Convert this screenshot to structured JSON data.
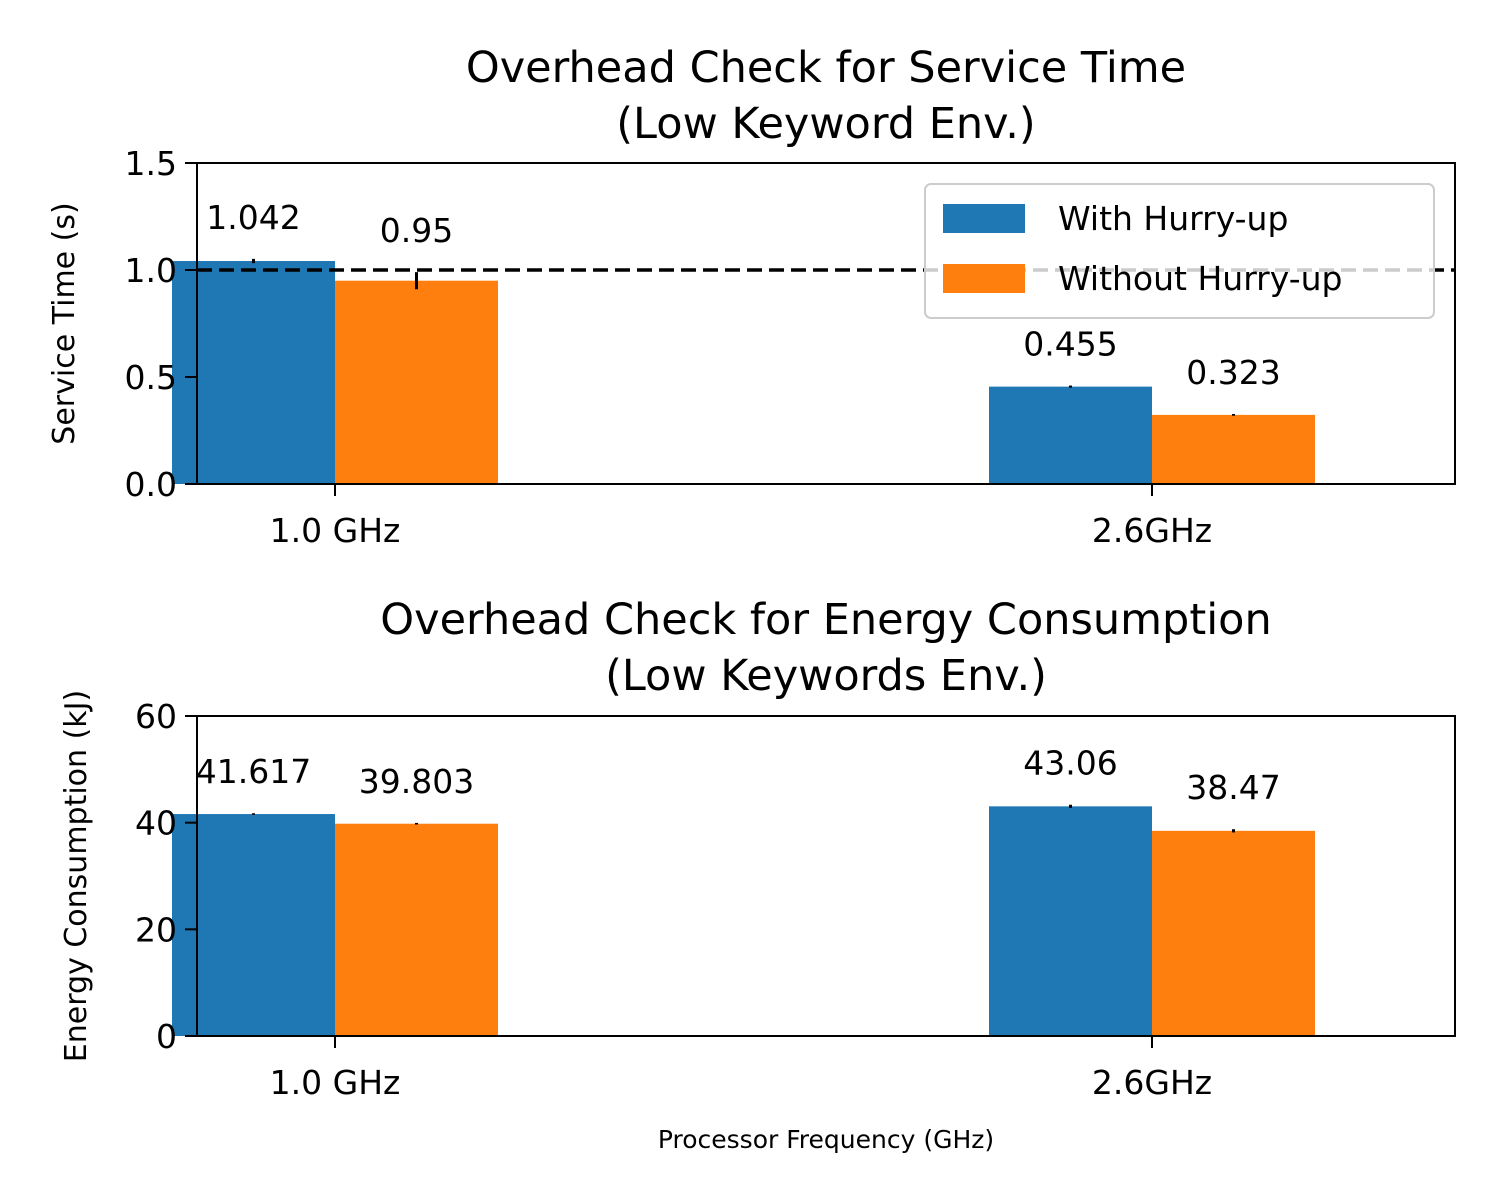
{
  "colors": {
    "with": "#1f77b4",
    "without": "#ff7f0e",
    "axis": "#000000",
    "reference_line": "#000000"
  },
  "xlabel": "Processor Frequency (GHz)",
  "legend": {
    "placement": "upper-right of top chart",
    "items": [
      "With Hurry-up",
      "Without Hurry-up"
    ]
  },
  "chart_data": [
    {
      "type": "bar",
      "title": "Overhead Check for Service Time\n(Low Keyword Env.)",
      "title_lines": [
        "Overhead Check for Service Time",
        "(Low Keyword Env.)"
      ],
      "ylabel": "Service Time (s)",
      "xlabel": "",
      "categories": [
        "1.0 GHz",
        "2.6GHz"
      ],
      "ylim": [
        0,
        1.5
      ],
      "yticks": [
        0.0,
        0.5,
        1.0,
        1.5
      ],
      "ytick_labels": [
        "0.0",
        "0.5",
        "1.0",
        "1.5"
      ],
      "reference_line": 1.0,
      "grid": false,
      "legend": "upper right",
      "series": [
        {
          "name": "With Hurry-up",
          "values": [
            1.042,
            0.455
          ],
          "labels": [
            "1.042",
            "0.455"
          ],
          "errors": [
            0.01,
            0.005
          ]
        },
        {
          "name": "Without Hurry-up",
          "values": [
            0.95,
            0.323
          ],
          "labels": [
            "0.95",
            "0.323"
          ],
          "errors": [
            0.04,
            0.004
          ]
        }
      ]
    },
    {
      "type": "bar",
      "title": "Overhead Check for Energy Consumption\n(Low Keywords Env.)",
      "title_lines": [
        "Overhead Check for Energy Consumption",
        "(Low Keywords Env.)"
      ],
      "ylabel": "Energy Consumption (kJ)",
      "xlabel": "Processor Frequency (GHz)",
      "categories": [
        "1.0 GHz",
        "2.6GHz"
      ],
      "ylim": [
        0,
        60
      ],
      "yticks": [
        0,
        20,
        40,
        60
      ],
      "ytick_labels": [
        "0",
        "20",
        "40",
        "60"
      ],
      "grid": false,
      "series": [
        {
          "name": "With Hurry-up",
          "values": [
            41.617,
            43.06
          ],
          "labels": [
            "41.617",
            "43.06"
          ],
          "errors": [
            0.15,
            0.3
          ]
        },
        {
          "name": "Without Hurry-up",
          "values": [
            39.803,
            38.47
          ],
          "labels": [
            "39.803",
            "38.47"
          ],
          "errors": [
            0.15,
            0.3
          ]
        }
      ]
    }
  ]
}
